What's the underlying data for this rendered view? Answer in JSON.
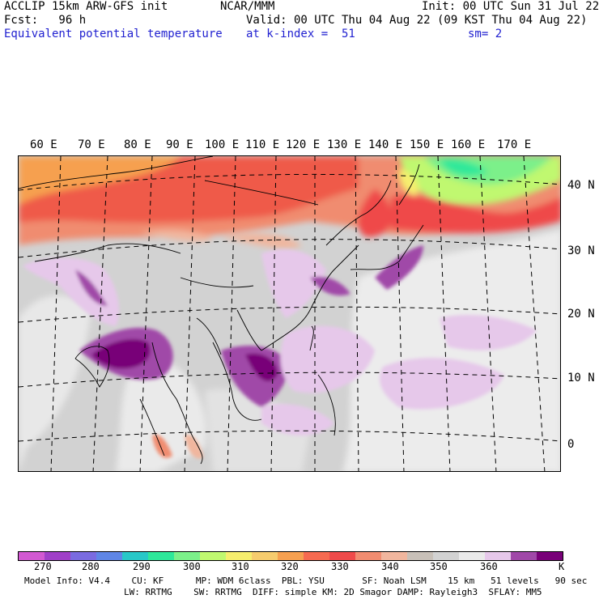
{
  "header": {
    "model": "ACCLIP 15km ARW-GFS init",
    "org": "NCAR/MMM",
    "init": "Init: 00 UTC Sun 31 Jul 22",
    "fcst": "Fcst:   96 h",
    "valid": "Valid: 00 UTC Thu 04 Aug 22 (09 KST Thu 04 Aug 22)",
    "field": "Equivalent potential temperature",
    "level": "at k-index =  51",
    "smooth": "sm= 2"
  },
  "map": {
    "lon_labels": [
      "60 E",
      "70 E",
      "80 E",
      "90 E",
      "100 E",
      "110 E",
      "120 E",
      "130 E",
      "140 E",
      "150 E",
      "160 E",
      "170 E"
    ],
    "lat_labels": [
      "40 N",
      "30 N",
      "20 N",
      "10 N",
      "0"
    ]
  },
  "colorbar": {
    "colors": [
      "#d259d2",
      "#a040c8",
      "#7a6be0",
      "#5f86e6",
      "#28c8c8",
      "#2ee89a",
      "#7cf08a",
      "#c0f870",
      "#f6ee6e",
      "#f6cc6e",
      "#f6a050",
      "#f66a50",
      "#ef4a4a",
      "#f08c70",
      "#f0b69e",
      "#c8c0b8",
      "#d2d2d2",
      "#eaeaea",
      "#e6c8ea",
      "#a048a8",
      "#780078"
    ],
    "ticks": [
      "270",
      "280",
      "290",
      "300",
      "310",
      "320",
      "330",
      "340",
      "350",
      "360"
    ],
    "unit": "K"
  },
  "footer": {
    "line1": "Model Info: V4.4    CU: KF      MP: WDM 6class  PBL: YSU       SF: Noah LSM    15 km   51 levels   90 sec",
    "line2": "LW: RRTMG    SW: RRTMG  DIFF: simple KM: 2D Smagor DAMP: Rayleigh3  SFLAY: MM5"
  }
}
